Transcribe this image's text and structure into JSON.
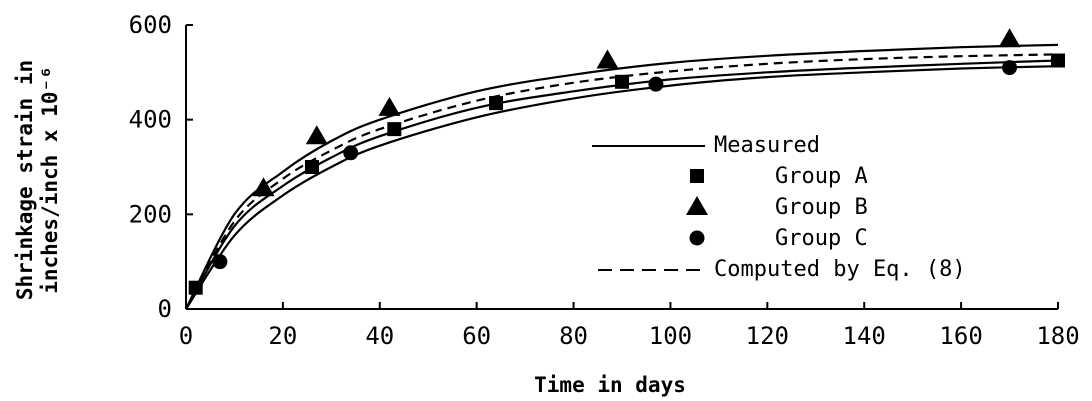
{
  "chart_data": {
    "type": "scatter",
    "title": "",
    "xlabel": "Time in days",
    "ylabel": [
      "Shrinkage strain in",
      "inches/inch x 10⁻⁶"
    ],
    "xlim": [
      0,
      180
    ],
    "ylim": [
      0,
      600
    ],
    "xticks": [
      0,
      20,
      40,
      60,
      80,
      100,
      120,
      140,
      160,
      180
    ],
    "yticks": [
      0,
      200,
      400,
      600
    ],
    "grid": false,
    "legend_position": "right",
    "legend": [
      {
        "label": "Measured",
        "style": "solid-line"
      },
      {
        "label": "Group A",
        "marker": "square"
      },
      {
        "label": "Group B",
        "marker": "triangle"
      },
      {
        "label": "Group C",
        "marker": "circle"
      },
      {
        "label": "Computed by Eq. (8)",
        "style": "dashed-line"
      }
    ],
    "series": [
      {
        "name": "Group A",
        "marker": "square",
        "x": [
          2,
          26,
          43,
          64,
          90,
          180
        ],
        "y": [
          45,
          300,
          380,
          435,
          480,
          525
        ]
      },
      {
        "name": "Group B",
        "marker": "triangle",
        "x": [
          16,
          27,
          42,
          87,
          170
        ],
        "y": [
          255,
          365,
          425,
          525,
          570
        ]
      },
      {
        "name": "Group C",
        "marker": "circle",
        "x": [
          7,
          34,
          97,
          170
        ],
        "y": [
          100,
          330,
          475,
          510
        ]
      }
    ],
    "curves": [
      {
        "name": "Measured",
        "style": "solid",
        "x": [
          0,
          10,
          20,
          30,
          40,
          60,
          80,
          100,
          120,
          140,
          160,
          180
        ],
        "y": [
          0,
          200,
          290,
          355,
          400,
          460,
          495,
          520,
          535,
          545,
          553,
          558
        ]
      },
      {
        "name": "Measured",
        "style": "solid",
        "x": [
          0,
          10,
          20,
          30,
          40,
          60,
          80,
          100,
          120,
          140,
          160,
          180
        ],
        "y": [
          0,
          175,
          260,
          320,
          365,
          425,
          460,
          485,
          500,
          510,
          518,
          525
        ]
      },
      {
        "name": "Measured",
        "style": "solid",
        "x": [
          0,
          10,
          20,
          30,
          40,
          60,
          80,
          100,
          120,
          140,
          160,
          180
        ],
        "y": [
          0,
          155,
          240,
          300,
          345,
          405,
          445,
          472,
          490,
          500,
          508,
          513
        ]
      },
      {
        "name": "Computed by Eq. (8)",
        "style": "dashed",
        "x": [
          0,
          10,
          20,
          30,
          40,
          60,
          80,
          100,
          120,
          140,
          160,
          180
        ],
        "y": [
          0,
          185,
          275,
          335,
          380,
          440,
          478,
          502,
          518,
          528,
          534,
          538
        ]
      }
    ]
  }
}
